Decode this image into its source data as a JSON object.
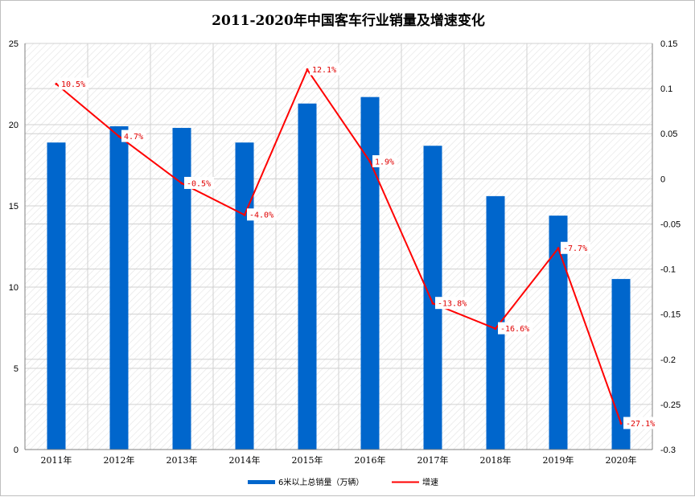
{
  "chart_data": {
    "type": "bar",
    "title": "2011-2020年中国客车行业销量及增速变化",
    "categories": [
      "2011年",
      "2012年",
      "2013年",
      "2014年",
      "2015年",
      "2016年",
      "2017年",
      "2018年",
      "2019年",
      "2020年"
    ],
    "series": [
      {
        "name": "6米以上总销量（万辆）",
        "type": "bar",
        "axis": "left",
        "color": "#0066cc",
        "values": [
          18.9,
          19.9,
          19.8,
          18.9,
          21.3,
          21.7,
          18.7,
          15.6,
          14.4,
          10.5
        ]
      },
      {
        "name": "增速",
        "type": "line",
        "axis": "right",
        "color": "#ff0000",
        "values": [
          0.105,
          0.047,
          -0.005,
          -0.04,
          0.121,
          0.019,
          -0.138,
          -0.166,
          -0.077,
          -0.271
        ],
        "labels": [
          "10.5%",
          "4.7%",
          "-0.5%",
          "-4.0%",
          "12.1%",
          "1.9%",
          "-13.8%",
          "-16.6%",
          "-7.7%",
          "-27.1%"
        ]
      }
    ],
    "y_left": {
      "min": 0,
      "max": 25,
      "ticks": [
        "0",
        "5",
        "10",
        "15",
        "20",
        "25"
      ]
    },
    "y_right": {
      "min": -0.3,
      "max": 0.15,
      "ticks": [
        "-0.3",
        "-0.25",
        "-0.2",
        "-0.15",
        "-0.1",
        "-0.05",
        "0",
        "0.05",
        "0.1",
        "0.15"
      ]
    },
    "grid": true,
    "legend_position": "bottom"
  }
}
